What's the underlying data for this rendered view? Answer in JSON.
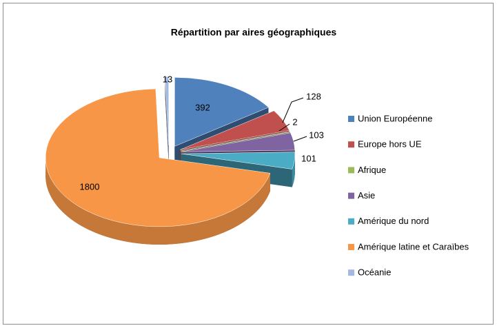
{
  "chart_data": {
    "type": "pie",
    "title": "Répartition par aires géographiques",
    "categories": [
      "Union Européenne",
      "Europe hors UE",
      "Afrique",
      "Asie",
      "Amérique du nord",
      "Amérique latine et Caraïbes",
      "Océanie"
    ],
    "values": [
      392,
      128,
      2,
      103,
      101,
      1800,
      13
    ],
    "colors": [
      "#4f81bd",
      "#c0504d",
      "#9bbb59",
      "#8064a2",
      "#4bacc6",
      "#f79646",
      "#a5b8e0"
    ],
    "legend": "right"
  }
}
